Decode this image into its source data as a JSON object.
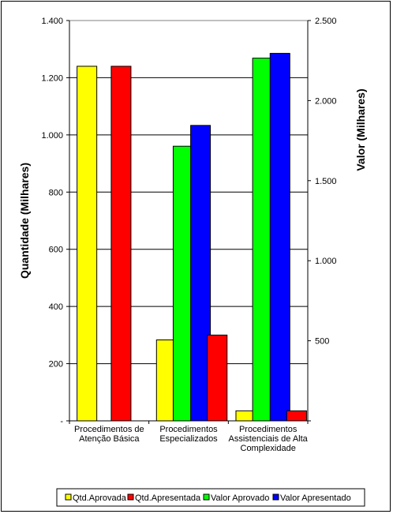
{
  "chart_data": {
    "type": "bar",
    "categories": [
      [
        "Procedimentos de",
        "Atenção Básica"
      ],
      [
        "Procedimentos",
        "Especializados"
      ],
      [
        "Procedimentos",
        "Assistenciais de Alta",
        "Complexidade"
      ]
    ],
    "series": [
      {
        "name": "Qtd.Aprovada",
        "axis": "left",
        "color": "#ffff00",
        "values": [
          1240,
          283,
          35
        ]
      },
      {
        "name": "Qtd.Apresentada",
        "axis": "left",
        "color": "#ff0000",
        "values": [
          1240,
          null,
          null
        ]
      },
      {
        "name": "Valor Aprovado",
        "axis": "right",
        "color": "#00ff00",
        "values": [
          null,
          1715,
          2265
        ]
      },
      {
        "name": "Valor Apresentado",
        "axis": "right",
        "color": "#0000ff",
        "values": [
          null,
          1845,
          2295
        ]
      },
      {
        "name": "Qtd.Apresentada",
        "axis": "left",
        "color": "#ff0000",
        "values": [
          null,
          300,
          35
        ],
        "legend": false
      }
    ],
    "ylabel": "Quantidade (Milhares)",
    "y2label": "Valor (Milhares)",
    "ylim": [
      0,
      1400
    ],
    "y2lim": [
      0,
      2500
    ],
    "yticks": [
      "-",
      "200",
      "400",
      "600",
      "800",
      "1.000",
      "1.200",
      "1.400"
    ],
    "y2ticks": [
      "",
      "500",
      "1.000",
      "1.500",
      "2.000",
      "2.500"
    ],
    "grid": true,
    "legend_position": "bottom"
  }
}
